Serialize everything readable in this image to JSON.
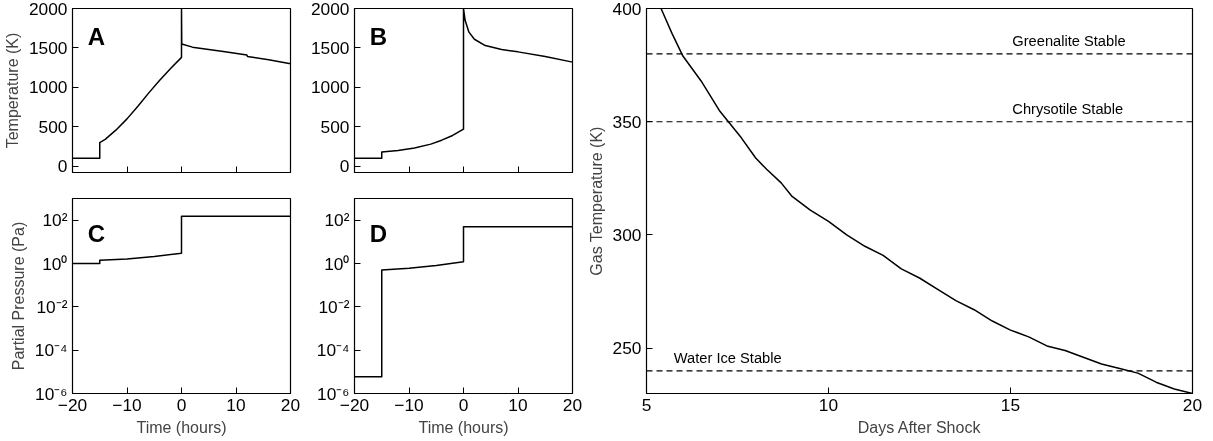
{
  "chart_data": [
    {
      "type": "line",
      "ylabel": "Temperature (K)",
      "annotations": [
        "A"
      ],
      "xlim": [
        -20,
        20
      ],
      "xticks": [
        -20,
        -10,
        0,
        10,
        20
      ],
      "ylim": [
        -80,
        2000
      ],
      "yticks": [
        0,
        500,
        1000,
        1500,
        2000
      ],
      "tick_labels": "y",
      "grid": false,
      "series": [
        {
          "color": "#000000",
          "x": [
            -20,
            -15,
            -15,
            -14,
            -12,
            -10,
            -8,
            -6,
            -4,
            -2,
            0,
            0,
            0.05,
            2,
            5,
            8,
            12,
            12.1,
            16,
            20
          ],
          "values": [
            100,
            100,
            300,
            340,
            460,
            600,
            760,
            930,
            1090,
            1240,
            1380,
            2000,
            1550,
            1510,
            1480,
            1450,
            1410,
            1390,
            1350,
            1300
          ]
        }
      ]
    },
    {
      "type": "line",
      "annotations": [
        "B"
      ],
      "xlim": [
        -20,
        20
      ],
      "xticks": [
        -20,
        -10,
        0,
        10,
        20
      ],
      "ylim": [
        -80,
        2000
      ],
      "yticks": [
        0,
        500,
        1000,
        1500,
        2000
      ],
      "tick_labels": "y",
      "grid": false,
      "series": [
        {
          "color": "#000000",
          "x": [
            -20,
            -15,
            -15,
            -12,
            -9,
            -6,
            -4,
            -2,
            0,
            0,
            0.3,
            1,
            2,
            4,
            7,
            10,
            15,
            20
          ],
          "values": [
            100,
            100,
            180,
            200,
            230,
            280,
            330,
            390,
            470,
            2000,
            1850,
            1700,
            1610,
            1530,
            1480,
            1450,
            1390,
            1320
          ]
        }
      ]
    },
    {
      "type": "line",
      "xlabel": "Time (hours)",
      "ylabel": "Partial Pressure (Pa)",
      "annotations": [
        "C"
      ],
      "log": "y",
      "xlim": [
        -20,
        20
      ],
      "xticks": [
        -20,
        -10,
        0,
        10,
        20
      ],
      "ylim": [
        1e-06,
        1000
      ],
      "yticks": [
        {
          "value": 1e-06,
          "label": "10⁻⁶"
        },
        {
          "value": 0.0001,
          "label": "10⁻⁴"
        },
        {
          "value": 0.01,
          "label": "10⁻²"
        },
        {
          "value": 1,
          "label": "10⁰"
        },
        {
          "value": 100,
          "label": "10²"
        }
      ],
      "grid": false,
      "series": [
        {
          "color": "#000000",
          "x": [
            -20,
            -15,
            -15,
            -10,
            -5,
            0,
            0,
            20
          ],
          "values": [
            1,
            1,
            1.4,
            1.6,
            2.1,
            3,
            150,
            150
          ]
        }
      ]
    },
    {
      "type": "line",
      "xlabel": "Time (hours)",
      "annotations": [
        "D"
      ],
      "log": "y",
      "xlim": [
        -20,
        20
      ],
      "xticks": [
        -20,
        -10,
        0,
        10,
        20
      ],
      "ylim": [
        1e-06,
        1000
      ],
      "yticks": [
        {
          "value": 1e-06,
          "label": "10⁻⁶"
        },
        {
          "value": 0.0001,
          "label": "10⁻⁴"
        },
        {
          "value": 0.01,
          "label": "10⁻²"
        },
        {
          "value": 1,
          "label": "10⁰"
        },
        {
          "value": 100,
          "label": "10²"
        }
      ],
      "grid": false,
      "series": [
        {
          "color": "#000000",
          "x": [
            -20,
            -15,
            -15,
            -10,
            -5,
            0,
            0,
            20
          ],
          "values": [
            6e-06,
            6e-06,
            0.5,
            0.6,
            0.8,
            1.2,
            50,
            50
          ]
        }
      ]
    },
    {
      "type": "line",
      "xlabel": "Days After Shock",
      "ylabel": "Gas Temperature (K)",
      "xlim": [
        5,
        20
      ],
      "xticks": [
        5,
        10,
        15,
        20
      ],
      "ylim": [
        230,
        400
      ],
      "yticks": [
        250,
        300,
        350,
        400
      ],
      "grid": false,
      "ref_lines": [
        {
          "axis": "y",
          "value": 380,
          "label": "Greenalite Stable",
          "line_style": "dashed",
          "color": "#000000"
        },
        {
          "axis": "y",
          "value": 350,
          "label": "Chrysotile Stable",
          "line_style": "dashed",
          "color": "#000000"
        },
        {
          "axis": "y",
          "value": 240,
          "label": "Water Ice Stable",
          "line_style": "dashed",
          "color": "#000000"
        }
      ],
      "series": [
        {
          "color": "#000000",
          "x": [
            5.4,
            5.7,
            6,
            6.5,
            7,
            7.2,
            7.6,
            8,
            8.3,
            8.7,
            9,
            9.5,
            10,
            10.5,
            11,
            11.5,
            12,
            12.5,
            13,
            13.5,
            14,
            14.5,
            15,
            15.5,
            16,
            16.5,
            17,
            17.5,
            18,
            18.5,
            19,
            19.5,
            20
          ],
          "values": [
            400,
            389,
            379,
            368,
            355,
            351,
            343,
            334,
            329,
            323,
            317,
            311,
            306,
            300,
            295,
            291,
            285,
            281,
            276,
            271,
            267,
            262,
            258,
            255,
            251,
            249,
            246,
            243,
            241,
            239,
            235,
            232,
            230
          ]
        }
      ]
    }
  ]
}
